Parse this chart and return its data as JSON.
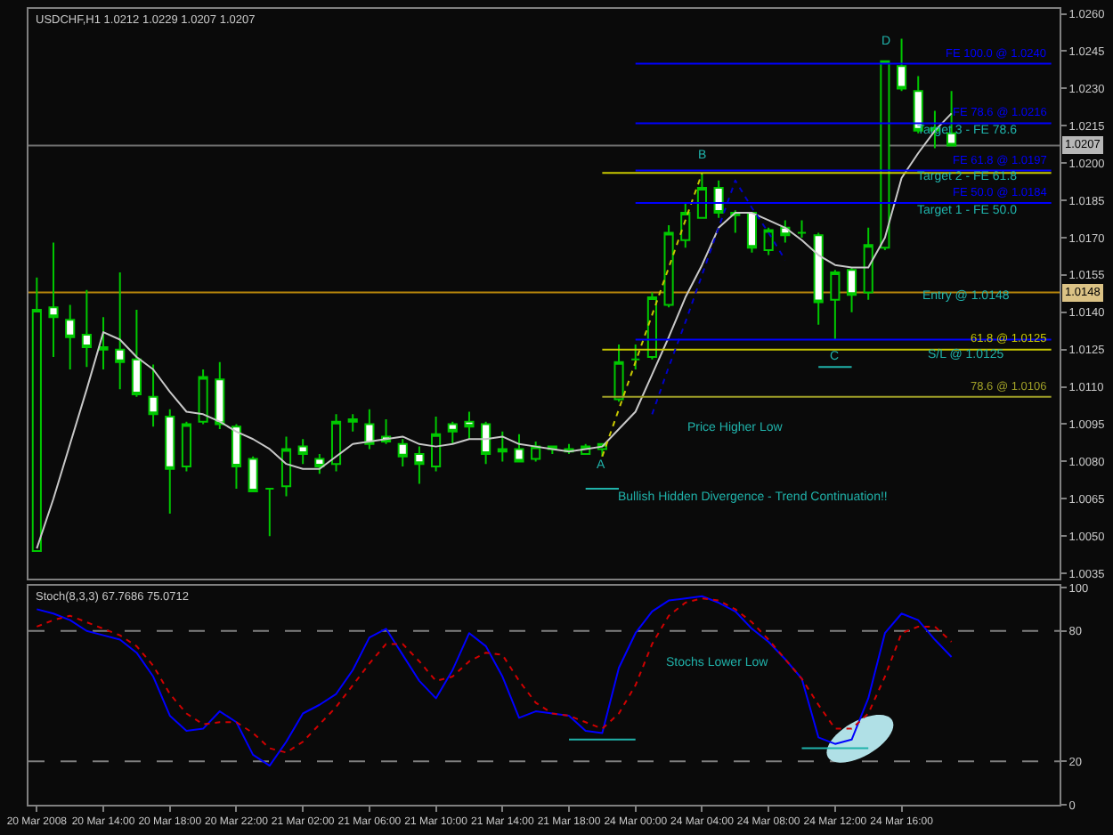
{
  "chart_data": [
    {
      "type": "candlestick",
      "title": "USDCHF,H1 1.0212 1.0229 1.0207 1.0207",
      "categories": [
        null,
        null,
        null,
        null,
        null,
        null,
        null,
        null,
        null,
        null,
        null,
        null,
        null,
        null,
        null,
        null,
        null,
        null,
        null,
        null,
        null,
        null,
        null,
        null,
        null,
        null,
        null,
        null,
        null,
        null,
        null,
        null,
        null,
        null,
        null,
        null,
        null,
        null,
        null,
        null,
        null,
        null,
        null,
        null,
        null,
        null,
        null,
        null,
        null,
        null,
        null,
        null,
        null,
        null,
        null,
        null,
        null,
        null,
        null,
        null,
        null,
        null
      ],
      "ohlc": [
        [
          1.0044,
          1.0154,
          1.0044,
          1.0141
        ],
        [
          1.0142,
          1.0168,
          1.0122,
          1.0138
        ],
        [
          1.0137,
          1.0143,
          1.0117,
          1.013
        ],
        [
          1.0131,
          1.0149,
          1.0118,
          1.0126
        ],
        [
          1.0125,
          1.0138,
          1.0117,
          1.0126
        ],
        [
          1.0125,
          1.0156,
          1.0109,
          1.012
        ],
        [
          1.0121,
          1.0141,
          1.0106,
          1.0107
        ],
        [
          1.0106,
          1.0119,
          1.0094,
          1.0099
        ],
        [
          1.0098,
          1.0101,
          1.0059,
          1.0077
        ],
        [
          1.0078,
          1.0096,
          1.0076,
          1.0095
        ],
        [
          1.0096,
          1.0117,
          1.0095,
          1.0114
        ],
        [
          1.0113,
          1.012,
          1.0093,
          1.0095
        ],
        [
          1.0094,
          1.0095,
          1.0069,
          1.0078
        ],
        [
          1.0081,
          1.0082,
          1.0068,
          1.0068
        ],
        [
          1.0069,
          1.0069,
          1.005,
          1.0069
        ],
        [
          1.007,
          1.009,
          1.0066,
          1.0085
        ],
        [
          1.0086,
          1.0089,
          1.0079,
          1.0083
        ],
        [
          1.0081,
          1.0083,
          1.0075,
          1.0078
        ],
        [
          1.0079,
          1.0099,
          1.0076,
          1.0096
        ],
        [
          1.0097,
          1.0099,
          1.0092,
          1.0096
        ],
        [
          1.0095,
          1.0101,
          1.0085,
          1.0087
        ],
        [
          1.009,
          1.0097,
          1.0087,
          1.0088
        ],
        [
          1.0087,
          1.0089,
          1.0078,
          1.0082
        ],
        [
          1.0083,
          1.0086,
          1.0071,
          1.0079
        ],
        [
          1.0078,
          1.0098,
          1.0076,
          1.0091
        ],
        [
          1.0095,
          1.0096,
          1.0087,
          1.0092
        ],
        [
          1.0096,
          1.01,
          1.0089,
          1.0094
        ],
        [
          1.0095,
          1.0096,
          1.0079,
          1.0083
        ],
        [
          1.0085,
          1.0092,
          1.008,
          1.0084
        ],
        [
          1.0085,
          1.0091,
          1.008,
          1.008
        ],
        [
          1.0081,
          1.0088,
          1.008,
          1.0086
        ],
        [
          1.0085,
          1.0086,
          1.0083,
          1.0086
        ],
        [
          1.0084,
          1.0087,
          1.0083,
          1.0085
        ],
        [
          1.0083,
          1.0087,
          1.0083,
          1.0086
        ],
        [
          1.0085,
          1.0087,
          1.0082,
          1.0087
        ],
        [
          1.0105,
          1.0127,
          1.0104,
          1.012
        ],
        [
          1.0121,
          1.0127,
          1.0117,
          1.0121
        ],
        [
          1.0122,
          1.0148,
          1.0121,
          1.0146
        ],
        [
          1.0143,
          1.0175,
          1.0142,
          1.0172
        ],
        [
          1.0169,
          1.0184,
          1.0166,
          1.018
        ],
        [
          1.0178,
          1.0196,
          1.0178,
          1.019
        ],
        [
          1.019,
          1.0193,
          1.0178,
          1.018
        ],
        [
          1.018,
          1.0181,
          1.0172,
          1.0179
        ],
        [
          1.018,
          1.018,
          1.0164,
          1.0166
        ],
        [
          1.0165,
          1.0174,
          1.0163,
          1.0173
        ],
        [
          1.0174,
          1.0177,
          1.0168,
          1.0171
        ],
        [
          1.0172,
          1.0177,
          1.017,
          1.0172
        ],
        [
          1.0171,
          1.0172,
          1.0135,
          1.0144
        ],
        [
          1.0145,
          1.0157,
          1.0129,
          1.0156
        ],
        [
          1.0157,
          1.0158,
          1.014,
          1.0147
        ],
        [
          1.0148,
          1.0174,
          1.0145,
          1.0167
        ],
        [
          1.0166,
          1.0241,
          1.0165,
          1.0241
        ],
        [
          1.0239,
          1.025,
          1.0229,
          1.023
        ],
        [
          1.0229,
          1.0235,
          1.0212,
          1.0213
        ],
        [
          1.0213,
          1.0221,
          1.0206,
          1.0214
        ],
        [
          1.0212,
          1.0229,
          1.0207,
          1.0207
        ],
        null,
        null,
        null,
        null,
        null,
        null
      ],
      "series": [
        {
          "type": "line",
          "color": "#c8c8c8",
          "values": [
            1.0045,
            1.0065,
            1.0087,
            1.0109,
            1.0132,
            1.0129,
            1.0122,
            1.0117,
            1.0108,
            1.01,
            1.0099,
            1.0096,
            1.0092,
            1.0089,
            1.0085,
            1.0079,
            1.0077,
            1.0077,
            1.0082,
            1.0087,
            1.0088,
            1.0089,
            1.009,
            1.0087,
            1.0086,
            1.0087,
            1.0089,
            1.0089,
            1.009,
            1.0087,
            1.0086,
            1.0085,
            1.0084,
            1.0085,
            1.0086,
            1.0093,
            1.01,
            1.0115,
            1.013,
            1.0146,
            1.0159,
            1.0174,
            1.018,
            1.018,
            1.0177,
            1.0174,
            1.0169,
            1.0163,
            1.0159,
            1.0158,
            1.0158,
            1.017,
            1.0194,
            1.0204,
            1.0213,
            1.022,
            null,
            null,
            null,
            null,
            null,
            null
          ]
        },
        {
          "type": "line",
          "name": "61.8 @ 1.0125",
          "color": "#c8c800",
          "values": [
            null,
            null,
            null,
            null,
            null,
            null,
            null,
            null,
            null,
            null,
            null,
            null,
            null,
            null,
            null,
            null,
            null,
            null,
            null,
            null,
            null,
            null,
            null,
            null,
            null,
            null,
            null,
            null,
            null,
            null,
            null,
            null,
            null,
            null,
            1.0125,
            1.0125,
            1.0125,
            1.0125,
            1.0125,
            1.0125,
            1.0125,
            1.0125,
            1.0125,
            1.0125,
            1.0125,
            1.0125,
            1.0125,
            1.0125,
            1.0125,
            1.0125,
            1.0125,
            1.0125,
            1.0125,
            1.0125,
            1.0125,
            1.0125,
            1.0125,
            1.0125,
            1.0125,
            1.0125,
            1.0125,
            1.0125
          ]
        },
        {
          "type": "line",
          "name": "78.6 @ 1.0106",
          "color": "#a0a028",
          "values": [
            null,
            null,
            null,
            null,
            null,
            null,
            null,
            null,
            null,
            null,
            null,
            null,
            null,
            null,
            null,
            null,
            null,
            null,
            null,
            null,
            null,
            null,
            null,
            null,
            null,
            null,
            null,
            null,
            null,
            null,
            null,
            null,
            null,
            null,
            1.0106,
            1.0106,
            1.0106,
            1.0106,
            1.0106,
            1.0106,
            1.0106,
            1.0106,
            1.0106,
            1.0106,
            1.0106,
            1.0106,
            1.0106,
            1.0106,
            1.0106,
            1.0106,
            1.0106,
            1.0106,
            1.0106,
            1.0106,
            1.0106,
            1.0106,
            1.0106,
            1.0106,
            1.0106,
            1.0106,
            1.0106,
            1.0106
          ]
        },
        {
          "type": "line",
          "color": "#c8c800",
          "line_style": "dotted",
          "values": [
            null,
            null,
            null,
            null,
            null,
            null,
            null,
            null,
            null,
            null,
            null,
            null,
            null,
            null,
            null,
            null,
            null,
            null,
            null,
            null,
            null,
            null,
            null,
            null,
            null,
            null,
            null,
            null,
            null,
            null,
            null,
            null,
            null,
            null,
            1.0082,
            1.0101,
            1.012,
            1.0139,
            1.0158,
            1.0177,
            1.0196,
            null,
            null,
            null,
            null,
            null,
            null,
            null,
            null,
            null,
            null,
            null,
            null,
            null,
            null,
            null,
            null,
            null,
            null,
            null,
            null,
            null
          ]
        },
        {
          "type": "line",
          "color": "#0000c8",
          "line_style": "dotted",
          "values": [
            null,
            null,
            null,
            null,
            null,
            null,
            null,
            null,
            null,
            null,
            null,
            null,
            null,
            null,
            null,
            null,
            null,
            null,
            null,
            null,
            null,
            null,
            null,
            null,
            null,
            null,
            null,
            null,
            null,
            null,
            null,
            null,
            null,
            null,
            null,
            null,
            null,
            1.0099,
            1.0118,
            1.0136,
            1.0155,
            1.0174,
            1.0193,
            1.0182,
            1.0172,
            1.0161,
            null,
            null,
            null,
            null,
            null,
            null,
            null,
            null,
            null,
            null,
            null,
            null,
            null,
            null,
            null,
            null
          ]
        },
        {
          "type": "line",
          "name": "FE 100.0 @ 1.0240",
          "color": "#0000ff",
          "values": [
            null,
            null,
            null,
            null,
            null,
            null,
            null,
            null,
            null,
            null,
            null,
            null,
            null,
            null,
            null,
            null,
            null,
            null,
            null,
            null,
            null,
            null,
            null,
            null,
            null,
            null,
            null,
            null,
            null,
            null,
            null,
            null,
            null,
            null,
            null,
            null,
            1.024,
            1.024,
            1.024,
            1.024,
            1.024,
            1.024,
            1.024,
            1.024,
            1.024,
            1.024,
            1.024,
            1.024,
            1.024,
            1.024,
            1.024,
            1.024,
            1.024,
            1.024,
            1.024,
            1.024,
            1.024,
            1.024,
            1.024,
            1.024,
            1.024,
            1.024
          ]
        },
        {
          "type": "line",
          "name": "FE 78.6 @ 1.0216",
          "color": "#0000ff",
          "values": [
            null,
            null,
            null,
            null,
            null,
            null,
            null,
            null,
            null,
            null,
            null,
            null,
            null,
            null,
            null,
            null,
            null,
            null,
            null,
            null,
            null,
            null,
            null,
            null,
            null,
            null,
            null,
            null,
            null,
            null,
            null,
            null,
            null,
            null,
            null,
            null,
            1.0216,
            1.0216,
            1.0216,
            1.0216,
            1.0216,
            1.0216,
            1.0216,
            1.0216,
            1.0216,
            1.0216,
            1.0216,
            1.0216,
            1.0216,
            1.0216,
            1.0216,
            1.0216,
            1.0216,
            1.0216,
            1.0216,
            1.0216,
            1.0216,
            1.0216,
            1.0216,
            1.0216,
            1.0216,
            1.0216
          ]
        },
        {
          "type": "line",
          "name": "FE 61.8 @ 1.0197",
          "color": "#0000ff",
          "values": [
            null,
            null,
            null,
            null,
            null,
            null,
            null,
            null,
            null,
            null,
            null,
            null,
            null,
            null,
            null,
            null,
            null,
            null,
            null,
            null,
            null,
            null,
            null,
            null,
            null,
            null,
            null,
            null,
            null,
            null,
            null,
            null,
            null,
            null,
            null,
            null,
            1.0197,
            1.0197,
            1.0197,
            1.0197,
            1.0197,
            1.0197,
            1.0197,
            1.0197,
            1.0197,
            1.0197,
            1.0197,
            1.0197,
            1.0197,
            1.0197,
            1.0197,
            1.0197,
            1.0197,
            1.0197,
            1.0197,
            1.0197,
            1.0197,
            1.0197,
            1.0197,
            1.0197,
            1.0197,
            1.0197
          ]
        },
        {
          "type": "line",
          "color": "#c8c800",
          "values": [
            null,
            null,
            null,
            null,
            null,
            null,
            null,
            null,
            null,
            null,
            null,
            null,
            null,
            null,
            null,
            null,
            null,
            null,
            null,
            null,
            null,
            null,
            null,
            null,
            null,
            null,
            null,
            null,
            null,
            null,
            null,
            null,
            null,
            null,
            1.0196,
            1.0196,
            1.0196,
            1.0196,
            1.0196,
            1.0196,
            1.0196,
            1.0196,
            1.0196,
            1.0196,
            1.0196,
            1.0196,
            1.0196,
            1.0196,
            1.0196,
            1.0196,
            1.0196,
            1.0196,
            1.0196,
            1.0196,
            1.0196,
            1.0196,
            1.0196,
            1.0196,
            1.0196,
            1.0196,
            1.0196,
            1.0196
          ]
        },
        {
          "type": "line",
          "name": "FE 50.0 @ 1.0184",
          "color": "#0000ff",
          "values": [
            null,
            null,
            null,
            null,
            null,
            null,
            null,
            null,
            null,
            null,
            null,
            null,
            null,
            null,
            null,
            null,
            null,
            null,
            null,
            null,
            null,
            null,
            null,
            null,
            null,
            null,
            null,
            null,
            null,
            null,
            null,
            null,
            null,
            null,
            null,
            null,
            1.0184,
            1.0184,
            1.0184,
            1.0184,
            1.0184,
            1.0184,
            1.0184,
            1.0184,
            1.0184,
            1.0184,
            1.0184,
            1.0184,
            1.0184,
            1.0184,
            1.0184,
            1.0184,
            1.0184,
            1.0184,
            1.0184,
            1.0184,
            1.0184,
            1.0184,
            1.0184,
            1.0184,
            1.0184,
            1.0184
          ]
        },
        {
          "type": "line",
          "color": "#0000ff",
          "values": [
            null,
            null,
            null,
            null,
            null,
            null,
            null,
            null,
            null,
            null,
            null,
            null,
            null,
            null,
            null,
            null,
            null,
            null,
            null,
            null,
            null,
            null,
            null,
            null,
            null,
            null,
            null,
            null,
            null,
            null,
            null,
            null,
            null,
            null,
            null,
            null,
            1.0129,
            1.0129,
            1.0129,
            1.0129,
            1.0129,
            1.0129,
            1.0129,
            1.0129,
            1.0129,
            1.0129,
            1.0129,
            1.0129,
            1.0129,
            1.0129,
            1.0129,
            1.0129,
            1.0129,
            1.0129,
            1.0129,
            1.0129,
            1.0129,
            1.0129,
            1.0129,
            1.0129,
            1.0129,
            1.0129
          ]
        }
      ],
      "ylim": [
        1.0033,
        1.0262
      ],
      "yticks": [
        1.0035,
        {
          "value": 1.005,
          "label": "1.0050"
        },
        1.0065,
        {
          "value": 1.008,
          "label": "1.0080"
        },
        1.0095,
        {
          "value": 1.011,
          "label": "1.0110"
        },
        1.0125,
        {
          "value": 1.014,
          "label": "1.0140"
        },
        1.0155,
        {
          "value": 1.017,
          "label": "1.0170"
        },
        1.0185,
        {
          "value": 1.02,
          "label": "1.0200"
        },
        1.0215,
        {
          "value": 1.023,
          "label": "1.0230"
        },
        1.0245,
        {
          "value": 1.026,
          "label": "1.0260"
        }
      ],
      "ref_lines": [
        {
          "axis": "y",
          "value": 1.0207,
          "label": "1.0207",
          "color": "#707070"
        },
        {
          "axis": "y",
          "value": 1.0148,
          "label": "1.0148",
          "color": "#b8860b"
        }
      ],
      "annotations": [
        "A",
        "B",
        "C",
        "D",
        "Price Higher Low",
        "Bullish Hidden Divergence - Trend Continuation!!",
        {
          "text": "Target 3 - FE 78.6",
          "y": 1.0213
        },
        {
          "text": "Target 2 - FE 61.8",
          "y": 1.0194
        },
        {
          "text": "Target 1 - FE 50.0",
          "y": 1.0181
        },
        {
          "text": "Entry @ 1.0148",
          "y": 1.0147
        },
        {
          "text": "S/L @ 1.0125",
          "y": 1.0123
        }
      ]
    },
    {
      "type": "line",
      "title": "Stoch(8,3,3) 67.7686 75.0712",
      "categories": [
        "20 Mar 2008",
        null,
        null,
        null,
        "20 Mar 14:00",
        null,
        null,
        null,
        "20 Mar 18:00",
        null,
        null,
        null,
        "20 Mar 22:00",
        null,
        null,
        null,
        "21 Mar 02:00",
        null,
        null,
        null,
        "21 Mar 06:00",
        null,
        null,
        null,
        "21 Mar 10:00",
        null,
        null,
        null,
        "21 Mar 14:00",
        null,
        null,
        null,
        "21 Mar 18:00",
        null,
        null,
        null,
        "24 Mar 00:00",
        null,
        null,
        null,
        "24 Mar 04:00",
        null,
        null,
        null,
        "24 Mar 08:00",
        null,
        null,
        null,
        "24 Mar 12:00",
        null,
        null,
        null,
        "24 Mar 16:00",
        null,
        null,
        null,
        null,
        null,
        null,
        null,
        null,
        null
      ],
      "series": [
        {
          "color": "#0000ff",
          "values": [
            90,
            88,
            85,
            80,
            78,
            76,
            70,
            59,
            41,
            34,
            35,
            43,
            38,
            23,
            18,
            29,
            42,
            46,
            51,
            62,
            77,
            81,
            69,
            57,
            49,
            62,
            79,
            73,
            59,
            40,
            43,
            42,
            41,
            34,
            33,
            63,
            79,
            89,
            94,
            95,
            96,
            93,
            89,
            81,
            75,
            67,
            58,
            31,
            28,
            30,
            49,
            79,
            88,
            85,
            76,
            68,
            null,
            null,
            null,
            null,
            null,
            null
          ]
        },
        {
          "color": "#d00000",
          "line_style": "dotted",
          "values": [
            82,
            85,
            87,
            84,
            81,
            78,
            73,
            64,
            51,
            42,
            37,
            38,
            38,
            33,
            26,
            24,
            29,
            37,
            45,
            55,
            65,
            74,
            74,
            66,
            57,
            59,
            66,
            70,
            69,
            57,
            47,
            42,
            41,
            38,
            35,
            42,
            55,
            74,
            87,
            93,
            95,
            94,
            90,
            84,
            76,
            67,
            58,
            46,
            35,
            35,
            42,
            59,
            79,
            82,
            82,
            75,
            null,
            null,
            null,
            null,
            null,
            null
          ]
        },
        {
          "color": "#20b2aa",
          "values": [
            null,
            null,
            null,
            null,
            null,
            null,
            null,
            null,
            null,
            null,
            null,
            null,
            null,
            null,
            null,
            null,
            null,
            null,
            null,
            null,
            null,
            null,
            null,
            null,
            null,
            null,
            null,
            null,
            null,
            null,
            null,
            null,
            30,
            30,
            30,
            30,
            30,
            null,
            null,
            null,
            null,
            null,
            null,
            null,
            null,
            null,
            null,
            null,
            null,
            null,
            null,
            null,
            null,
            null,
            null,
            null,
            null,
            null,
            null,
            null,
            null,
            null
          ]
        },
        {
          "color": "#20b2aa",
          "values": [
            null,
            null,
            null,
            null,
            null,
            null,
            null,
            null,
            null,
            null,
            null,
            null,
            null,
            null,
            null,
            null,
            null,
            null,
            null,
            null,
            null,
            null,
            null,
            null,
            null,
            null,
            null,
            null,
            null,
            null,
            null,
            null,
            null,
            null,
            null,
            null,
            null,
            null,
            null,
            null,
            null,
            null,
            null,
            null,
            null,
            null,
            26,
            26,
            26,
            26,
            26,
            null,
            null,
            null,
            null,
            null,
            null,
            null,
            null,
            null,
            null,
            null
          ]
        }
      ],
      "ylim": [
        0,
        101
      ],
      "yticks": [
        0,
        20,
        80,
        100
      ],
      "ref_lines": [
        {
          "axis": "y",
          "value": 20,
          "color": "#808080",
          "line_style": "dashed"
        },
        {
          "axis": "y",
          "value": 80,
          "color": "#808080",
          "line_style": "dashed"
        }
      ],
      "annotations": [
        "Stochs Lower Low"
      ]
    }
  ]
}
